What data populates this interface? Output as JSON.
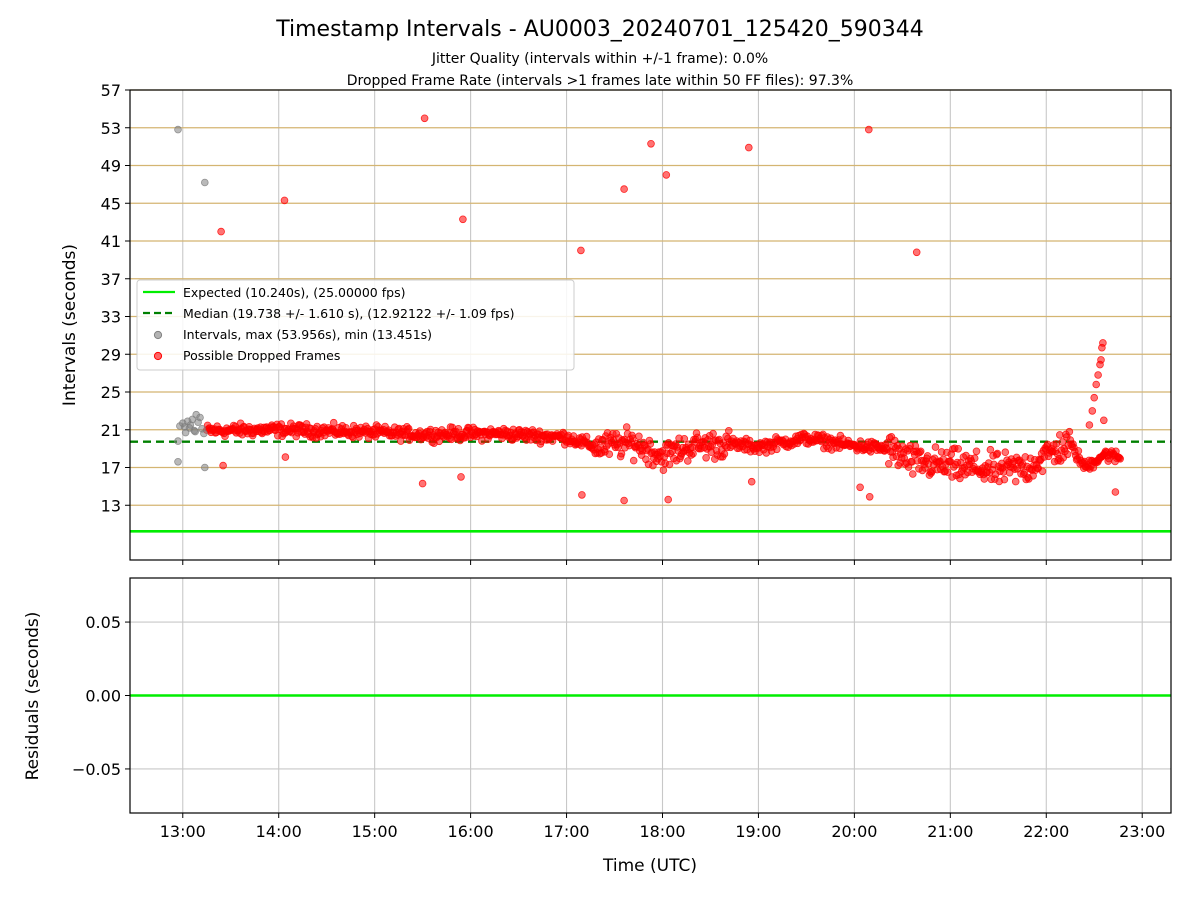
{
  "chart_data": [
    {
      "type": "scatter",
      "title": "Timestamp Intervals - AU0003_20240701_125420_590344",
      "subtitle_lines": [
        "Jitter Quality (intervals within +/-1 frame): 0.0%",
        "Dropped Frame Rate (intervals >1 frames late within 50 FF files): 97.3%"
      ],
      "xlabel": "",
      "ylabel": "Intervals (seconds)",
      "x_unit": "hours UTC",
      "xlim": [
        12.45,
        23.3
      ],
      "ylim": [
        7.2,
        57
      ],
      "yticks": [
        13,
        17,
        21,
        25,
        29,
        33,
        37,
        41,
        45,
        49,
        53,
        57
      ],
      "ytick_labels": [
        "13",
        "17",
        "21",
        "25",
        "29",
        "33",
        "37",
        "41",
        "45",
        "49",
        "53",
        "57"
      ],
      "xticks": [
        13,
        14,
        15,
        16,
        17,
        18,
        19,
        20,
        21,
        22,
        23
      ],
      "grid": true,
      "legend_position": "center-left",
      "legend": [
        {
          "label": "Expected (10.240s), (25.00000 fps)",
          "style": "solid",
          "color": "#00ee00"
        },
        {
          "label": "Median (19.738 +/- 1.610 s), (12.92122 +/- 1.09 fps)",
          "style": "dashed",
          "color": "#008000"
        },
        {
          "label": "Intervals, max (53.956s), min (13.451s)",
          "style": "marker",
          "color": "#808080"
        },
        {
          "label": "Possible Dropped Frames",
          "style": "marker",
          "color": "#ff0000"
        }
      ],
      "hlines": {
        "expected": 10.24,
        "median": 19.738
      },
      "series": [
        {
          "name": "Intervals",
          "color": "#808080",
          "points": [
            [
              12.95,
              52.8
            ],
            [
              13.23,
              47.2
            ],
            [
              12.95,
              17.6
            ],
            [
              13.23,
              17.0
            ],
            [
              12.95,
              19.8
            ],
            [
              12.97,
              21.4
            ],
            [
              13.0,
              21.7
            ],
            [
              13.02,
              21.3
            ],
            [
              13.05,
              21.9
            ],
            [
              13.08,
              21.5
            ],
            [
              13.1,
              22.1
            ],
            [
              13.12,
              20.9
            ],
            [
              13.14,
              22.6
            ],
            [
              13.16,
              21.8
            ],
            [
              13.18,
              22.3
            ],
            [
              13.2,
              21.1
            ],
            [
              13.22,
              20.6
            ],
            [
              13.03,
              20.7
            ],
            [
              13.07,
              21.2
            ],
            [
              13.13,
              20.8
            ]
          ]
        },
        {
          "name": "Possible Dropped Frames",
          "color": "#ff0000",
          "outliers": [
            [
              15.52,
              54.0
            ],
            [
              20.15,
              52.8
            ],
            [
              17.88,
              51.3
            ],
            [
              18.9,
              50.9
            ],
            [
              18.04,
              48.0
            ],
            [
              17.6,
              46.5
            ],
            [
              14.06,
              45.3
            ],
            [
              15.92,
              43.3
            ],
            [
              13.4,
              42.0
            ],
            [
              17.15,
              40.0
            ],
            [
              20.65,
              39.8
            ],
            [
              13.42,
              17.2
            ],
            [
              14.07,
              18.1
            ],
            [
              15.5,
              15.3
            ],
            [
              15.9,
              16.0
            ],
            [
              17.16,
              14.1
            ],
            [
              17.6,
              13.5
            ],
            [
              18.06,
              13.6
            ],
            [
              18.93,
              15.5
            ],
            [
              20.06,
              14.9
            ],
            [
              20.16,
              13.9
            ],
            [
              22.72,
              14.4
            ],
            [
              22.6,
              22.0
            ]
          ],
          "trend": [
            [
              13.25,
              20.9
            ],
            [
              14.0,
              21.0
            ],
            [
              14.8,
              20.8
            ],
            [
              15.5,
              20.5
            ],
            [
              16.3,
              20.6
            ],
            [
              17.0,
              20.2
            ],
            [
              17.3,
              19.2
            ],
            [
              17.7,
              19.6
            ],
            [
              18.0,
              18.2
            ],
            [
              18.3,
              19.3
            ],
            [
              18.7,
              19.5
            ],
            [
              19.0,
              19.2
            ],
            [
              19.5,
              20.1
            ],
            [
              20.0,
              19.3
            ],
            [
              20.35,
              19.0
            ],
            [
              20.6,
              17.6
            ],
            [
              21.0,
              17.2
            ],
            [
              21.5,
              16.7
            ],
            [
              21.8,
              17.0
            ],
            [
              22.05,
              18.6
            ],
            [
              22.25,
              19.5
            ],
            [
              22.4,
              17.0
            ],
            [
              22.6,
              18.4
            ],
            [
              22.78,
              18.0
            ]
          ],
          "spike": [
            [
              22.45,
              21.5
            ],
            [
              22.48,
              23.0
            ],
            [
              22.5,
              24.4
            ],
            [
              22.52,
              25.8
            ],
            [
              22.54,
              26.8
            ],
            [
              22.56,
              27.9
            ],
            [
              22.57,
              28.4
            ],
            [
              22.58,
              29.7
            ],
            [
              22.59,
              30.2
            ]
          ]
        }
      ]
    },
    {
      "type": "line",
      "title": "",
      "xlabel": "Time (UTC)",
      "ylabel": "Residuals (seconds)",
      "xlim": [
        12.45,
        23.3
      ],
      "ylim": [
        -0.08,
        0.08
      ],
      "yticks": [
        0.05,
        0.0,
        -0.05
      ],
      "ytick_labels": [
        "0.05",
        "0.00",
        "−0.05"
      ],
      "xticks": [
        13,
        14,
        15,
        16,
        17,
        18,
        19,
        20,
        21,
        22,
        23
      ],
      "xtick_labels": [
        "13:00",
        "14:00",
        "15:00",
        "16:00",
        "17:00",
        "18:00",
        "19:00",
        "20:00",
        "21:00",
        "22:00",
        "23:00"
      ],
      "grid": true,
      "series": [
        {
          "name": "Residuals",
          "color": "#00ee00",
          "values": [
            0.0,
            0.0
          ]
        }
      ]
    }
  ]
}
